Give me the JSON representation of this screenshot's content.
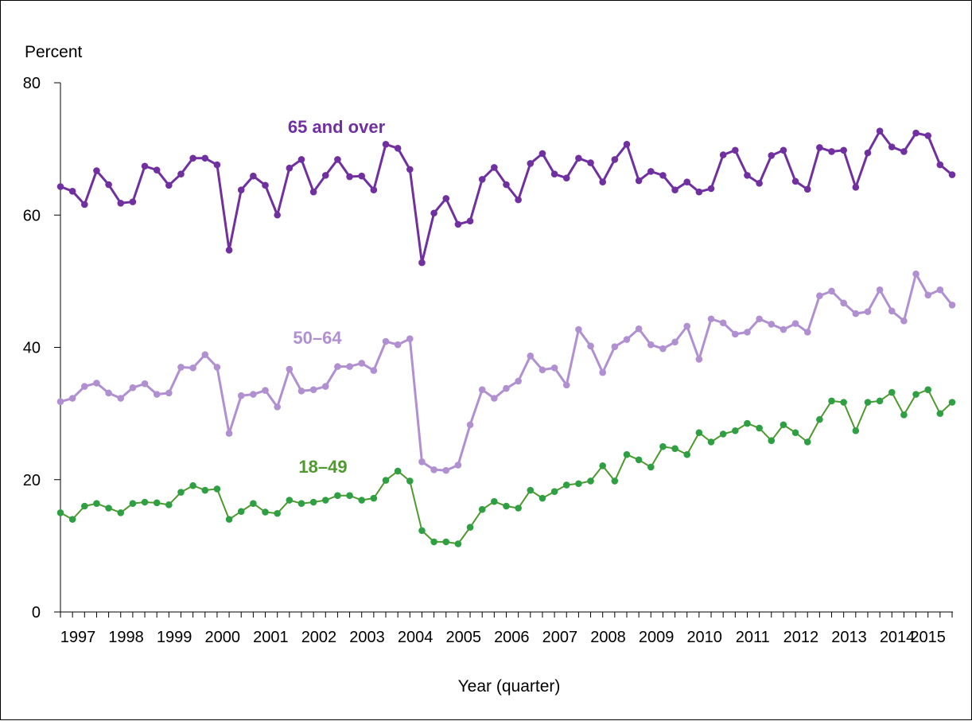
{
  "chart_data": {
    "type": "line",
    "title": "",
    "xlabel": "Year (quarter)",
    "ylabel": "Percent",
    "ylim": [
      0,
      80
    ],
    "yticks": [
      0,
      20,
      40,
      60,
      80
    ],
    "year_labels": [
      "1997",
      "1998",
      "1999",
      "2000",
      "2001",
      "2002",
      "2003",
      "2004",
      "2005",
      "2006",
      "2007",
      "2008",
      "2009",
      "2010",
      "2011",
      "2012",
      "2013",
      "2014",
      "2015"
    ],
    "quarters_per_year": 4,
    "grid": false,
    "legend": "none",
    "series": [
      {
        "name": "65 and over",
        "color": "#7030A0",
        "line_width": 3,
        "values": [
          64.3,
          63.6,
          61.6,
          66.7,
          64.6,
          61.8,
          62.0,
          67.4,
          66.8,
          64.5,
          66.2,
          68.6,
          68.6,
          67.6,
          54.7,
          63.8,
          65.9,
          64.5,
          60.0,
          67.1,
          68.4,
          63.5,
          66.0,
          68.4,
          65.8,
          65.9,
          63.8,
          70.7,
          70.1,
          66.9,
          52.8,
          60.3,
          62.5,
          58.6,
          59.1,
          65.4,
          67.2,
          64.6,
          62.3,
          67.8,
          69.3,
          66.2,
          65.6,
          68.6,
          67.9,
          65.0,
          68.4,
          70.7,
          65.2,
          66.6,
          66.0,
          63.8,
          65.0,
          63.5,
          64.0,
          69.1,
          69.8,
          66.0,
          64.8,
          69.0,
          69.8,
          65.1,
          63.9,
          70.2,
          69.6,
          69.8,
          64.2,
          69.4,
          72.7,
          70.3,
          69.6,
          72.4,
          72.0,
          67.6,
          66.1
        ]
      },
      {
        "name": "50–64",
        "color": "#B090D0",
        "line_width": 3,
        "values": [
          31.8,
          32.3,
          34.1,
          34.6,
          33.1,
          32.3,
          33.9,
          34.5,
          32.9,
          33.1,
          37.0,
          36.9,
          38.9,
          37.0,
          27.0,
          32.7,
          32.9,
          33.5,
          31.0,
          36.7,
          33.4,
          33.6,
          34.1,
          37.1,
          37.1,
          37.6,
          36.5,
          40.9,
          40.4,
          41.3,
          22.7,
          21.5,
          21.4,
          22.2,
          28.3,
          33.6,
          32.3,
          33.8,
          34.9,
          38.7,
          36.6,
          36.9,
          34.3,
          42.7,
          40.2,
          36.2,
          40.1,
          41.2,
          42.8,
          40.4,
          39.8,
          40.8,
          43.2,
          38.2,
          44.3,
          43.7,
          42.0,
          42.3,
          44.3,
          43.5,
          42.7,
          43.6,
          42.3,
          47.8,
          48.5,
          46.7,
          45.1,
          45.4,
          48.7,
          45.5,
          44.0,
          51.1,
          47.9,
          48.7,
          46.4
        ]
      },
      {
        "name": "18–49",
        "color": "#4E9A2E",
        "marker_color": "#2EA043",
        "line_width": 2,
        "values": [
          15.0,
          14.0,
          16.0,
          16.4,
          15.7,
          15.0,
          16.4,
          16.6,
          16.5,
          16.2,
          18.1,
          19.1,
          18.4,
          18.6,
          14.0,
          15.2,
          16.4,
          15.1,
          14.9,
          16.9,
          16.4,
          16.6,
          16.9,
          17.6,
          17.6,
          16.9,
          17.2,
          19.9,
          21.3,
          19.8,
          12.3,
          10.6,
          10.6,
          10.3,
          12.8,
          15.5,
          16.7,
          16.0,
          15.7,
          18.4,
          17.2,
          18.2,
          19.2,
          19.4,
          19.8,
          22.1,
          19.8,
          23.8,
          23.0,
          21.9,
          25.0,
          24.7,
          23.8,
          27.1,
          25.7,
          26.9,
          27.4,
          28.5,
          27.8,
          25.9,
          28.3,
          27.1,
          25.7,
          29.1,
          31.9,
          31.7,
          27.4,
          31.7,
          31.9,
          33.2,
          29.8,
          32.9,
          33.6,
          30.0,
          31.7
        ]
      }
    ],
    "annotations": [
      "65 and over",
      "50–64",
      "18–49"
    ]
  }
}
